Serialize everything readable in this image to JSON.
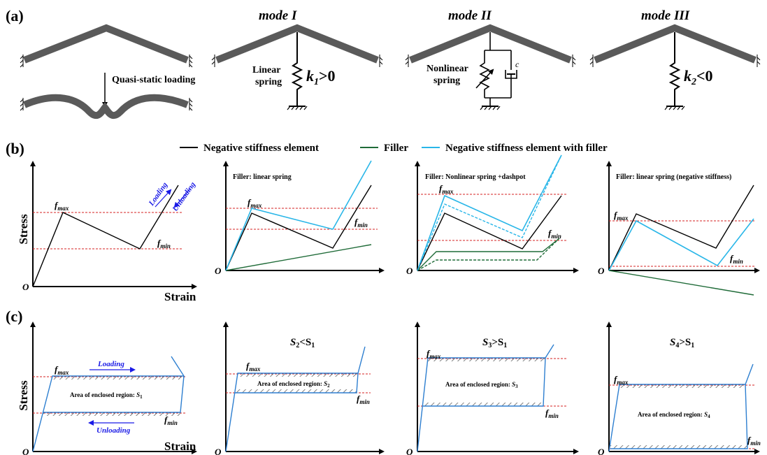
{
  "colors": {
    "nse": "#000000",
    "filler": "#1f6b38",
    "combined": "#29b6e8",
    "dashed_ref": "#d42020",
    "blue_arrow": "#1a1ae6",
    "beam": "#5a5a5a",
    "loop": "#2e7fd0"
  },
  "row_a": {
    "label": "(a)",
    "load_text": "Quasi-static loading",
    "modes": [
      {
        "title": "mode I",
        "spring_label": [
          "Linear",
          "spring"
        ],
        "k_label_main": "k",
        "k_sub": "1",
        "k_suffix": ">0"
      },
      {
        "title": "mode II",
        "spring_label": [
          "Nonlinear",
          "spring"
        ],
        "damper": "c"
      },
      {
        "title": "mode III",
        "k_label_main": "k",
        "k_sub": "2",
        "k_suffix": "<0"
      }
    ]
  },
  "row_b": {
    "label": "(b)",
    "legend": [
      "Negative stiffness element",
      "Filler",
      "Negative stiffness element with filler"
    ],
    "panel_titles": [
      "",
      "Filler: linear spring",
      "Filler: Nonlinear spring +dashpot",
      "Filler: linear spring (negative stiffness)"
    ],
    "y_label": "Stress",
    "x_label": "Strain",
    "origin": "O",
    "fmax_main": "f",
    "fmax_sub": "max",
    "fmin_main": "f",
    "fmin_sub": "min",
    "loading": "Loading",
    "unloading": "Unloading"
  },
  "row_c": {
    "label": "(c)",
    "y_label": "Stress",
    "x_label": "Strain",
    "origin": "O",
    "loading": "Loading",
    "unloading": "Unloading",
    "fmax_main": "f",
    "fmax_sub": "max",
    "fmin_main": "f",
    "fmin_sub": "min",
    "panels": [
      {
        "title_main": "",
        "title_sub": "",
        "area_text": "Area of enclosed region: ",
        "area_main": "S",
        "area_sub": "1"
      },
      {
        "title_main": "S",
        "title_sub": "2",
        "title_rel": "<S",
        "title_rel_sub": "1",
        "area_text": "Area of enclosed region: ",
        "area_main": "S",
        "area_sub": "2"
      },
      {
        "title_main": "S",
        "title_sub": "3",
        "title_rel": ">S",
        "title_rel_sub": "1",
        "area_text": "Area of enclosed region: ",
        "area_main": "S",
        "area_sub": "3"
      },
      {
        "title_main": "S",
        "title_sub": "4",
        "title_rel": ">S",
        "title_rel_sub": "1",
        "area_text": "Area of enclosed region: ",
        "area_main": "S",
        "area_sub": "4"
      }
    ]
  }
}
